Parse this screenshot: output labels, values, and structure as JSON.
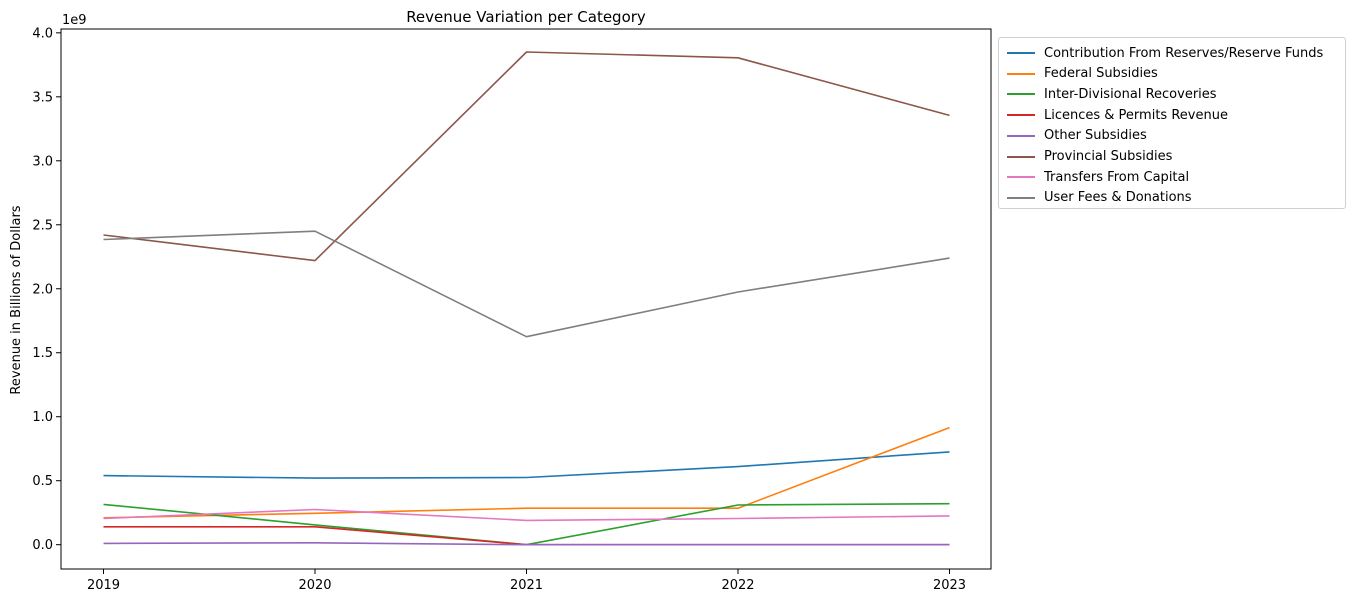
{
  "chart_data": {
    "type": "line",
    "title": "Revenue Variation per Category",
    "xlabel": "",
    "ylabel": "Revenue in Billions of Dollars",
    "y_offset_label": "1e9",
    "x": [
      "2019",
      "2020",
      "2021",
      "2022",
      "2023"
    ],
    "y_ticks": [
      "0.0",
      "0.5",
      "1.0",
      "1.5",
      "2.0",
      "2.5",
      "3.0",
      "3.5",
      "4.0"
    ],
    "ylim": [
      -0.19,
      4.03
    ],
    "grid": false,
    "legend_position": "outside-upper-right",
    "series": [
      {
        "name": "Contribution From Reserves/Reserve Funds",
        "color": "#1f77b4",
        "values": [
          0.54,
          0.52,
          0.525,
          0.61,
          0.725
        ]
      },
      {
        "name": "Federal Subsidies",
        "color": "#ff7f0e",
        "values": [
          0.21,
          0.245,
          0.285,
          0.285,
          0.915
        ]
      },
      {
        "name": "Inter-Divisional Recoveries",
        "color": "#2ca02c",
        "values": [
          0.315,
          0.155,
          0.0,
          0.31,
          0.32
        ]
      },
      {
        "name": "Licences & Permits Revenue",
        "color": "#d62728",
        "values": [
          0.14,
          0.14,
          0.0,
          0.0,
          0.0
        ]
      },
      {
        "name": "Other Subsidies",
        "color": "#9467bd",
        "values": [
          0.01,
          0.015,
          0.0,
          0.0,
          0.0
        ]
      },
      {
        "name": "Provincial Subsidies",
        "color": "#8c564b",
        "values": [
          2.42,
          2.22,
          3.85,
          3.805,
          3.355
        ]
      },
      {
        "name": "Transfers From Capital",
        "color": "#e377c2",
        "values": [
          0.205,
          0.275,
          0.19,
          0.205,
          0.225
        ]
      },
      {
        "name": "User Fees & Donations",
        "color": "#7f7f7f",
        "values": [
          2.385,
          2.45,
          1.625,
          1.975,
          2.24
        ]
      }
    ]
  }
}
